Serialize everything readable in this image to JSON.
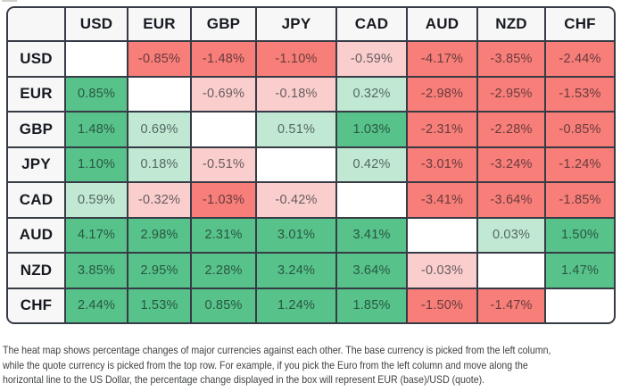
{
  "chart_data": {
    "type": "heatmap",
    "base_currencies_left_column": [
      "USD",
      "EUR",
      "GBP",
      "JPY",
      "CAD",
      "AUD",
      "NZD",
      "CHF"
    ],
    "quote_currencies_top_row": [
      "USD",
      "EUR",
      "GBP",
      "JPY",
      "CAD",
      "AUD",
      "NZD",
      "CHF"
    ],
    "values_pct": [
      [
        null,
        -0.85,
        -1.48,
        -1.1,
        -0.59,
        -4.17,
        -3.85,
        -2.44
      ],
      [
        0.85,
        null,
        -0.69,
        -0.18,
        0.32,
        -2.98,
        -2.95,
        -1.53
      ],
      [
        1.48,
        0.69,
        null,
        0.51,
        1.03,
        -2.31,
        -2.28,
        -0.85
      ],
      [
        1.1,
        0.18,
        -0.51,
        null,
        0.42,
        -3.01,
        -3.24,
        -1.24
      ],
      [
        0.59,
        -0.32,
        -1.03,
        -0.42,
        null,
        -3.41,
        -3.64,
        -1.85
      ],
      [
        4.17,
        2.98,
        2.31,
        3.01,
        3.41,
        null,
        0.03,
        1.5
      ],
      [
        3.85,
        2.95,
        2.28,
        3.24,
        3.64,
        -0.03,
        null,
        1.47
      ],
      [
        2.44,
        1.53,
        0.85,
        1.24,
        1.85,
        -1.5,
        -1.47,
        null
      ]
    ],
    "value_suffix": "%",
    "value_decimals": 2,
    "strong_threshold": 0.75,
    "corner_label": "",
    "color_rule": "green for positive, red for negative; strong shade when |value| >= 0.75, weak shade otherwise; diagonal blank"
  },
  "colors": {
    "positive_strong": "#57c289",
    "positive_weak": "#c0e8d2",
    "negative_strong": "#f77e79",
    "negative_weak": "#f9cecd",
    "grid_line": "#363b46",
    "header_bg": "#f7f7f8",
    "diagonal_bg": "#ffffff"
  },
  "footnote": {
    "lines": [
      "The heat map shows percentage changes of major currencies against each other. The base currency is picked from the left column,",
      "while the quote currency is picked from the top row. For example, if you pick the Euro from the left column and move along the",
      "horizontal line to the US Dollar, the percentage change displayed in the box will represent EUR (base)/USD (quote)."
    ]
  }
}
